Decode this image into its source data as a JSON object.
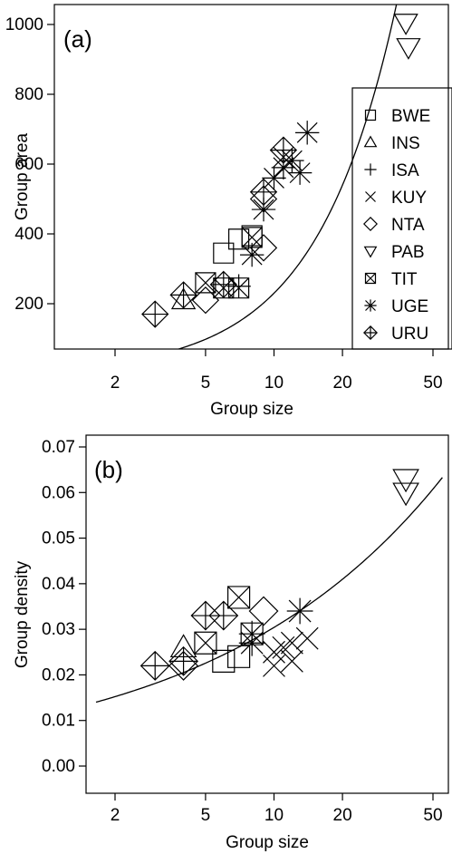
{
  "chart_data": [
    {
      "panel": "(a)",
      "type": "scatter",
      "xlabel": "Group size",
      "ylabel": "Group area",
      "x_scale": "log",
      "xlim": [
        1.65,
        55
      ],
      "ylim": [
        60,
        1030
      ],
      "xticks": [
        2,
        5,
        10,
        20,
        50
      ],
      "yticks": [
        200,
        400,
        600,
        800,
        1000
      ],
      "grid": false,
      "legend_position": "right",
      "series": [
        {
          "name": "BWE",
          "marker": "square",
          "points": [
            [
              6,
              345
            ],
            [
              7,
              385
            ],
            [
              8,
              395
            ]
          ]
        },
        {
          "name": "INS",
          "marker": "triangle-up",
          "points": [
            [
              4,
              210
            ]
          ]
        },
        {
          "name": "ISA",
          "marker": "plus",
          "points": [
            [
              7,
              250
            ]
          ]
        },
        {
          "name": "KUY",
          "marker": "cross",
          "points": [
            [
              11,
              620
            ]
          ]
        },
        {
          "name": "NTA",
          "marker": "diamond",
          "points": [
            [
              5,
              210
            ],
            [
              9,
              360
            ],
            [
              9,
              500
            ]
          ]
        },
        {
          "name": "PAB",
          "marker": "triangle-down",
          "points": [
            [
              38,
              1005
            ],
            [
              39,
              935
            ]
          ]
        },
        {
          "name": "TIT",
          "marker": "boxed-cross",
          "points": [
            [
              5,
              260
            ],
            [
              6,
              245
            ],
            [
              7,
              245
            ],
            [
              8,
              390
            ]
          ]
        },
        {
          "name": "UGE",
          "marker": "asterisk",
          "points": [
            [
              8,
              340
            ],
            [
              9,
              470
            ],
            [
              10,
              560
            ],
            [
              11,
              590
            ],
            [
              12,
              610
            ],
            [
              13,
              575
            ],
            [
              14,
              690
            ]
          ]
        },
        {
          "name": "URU",
          "marker": "diamond-plus",
          "points": [
            [
              3,
              170
            ],
            [
              4,
              225
            ],
            [
              6,
              255
            ],
            [
              9,
              520
            ],
            [
              11,
              640
            ]
          ]
        }
      ],
      "fit_curve": {
        "form": "a*x^b",
        "a": 13.55,
        "b": 1.23
      }
    },
    {
      "panel": "(b)",
      "type": "scatter",
      "xlabel": "Group size",
      "ylabel": "Group density",
      "x_scale": "log",
      "xlim": [
        1.65,
        55
      ],
      "ylim": [
        -0.003,
        0.072
      ],
      "xticks": [
        2,
        5,
        10,
        20,
        50
      ],
      "yticks": [
        0.0,
        0.01,
        0.02,
        0.03,
        0.04,
        0.05,
        0.06,
        0.07
      ],
      "grid": false,
      "series": [
        {
          "name": "BWE",
          "marker": "square",
          "points": [
            [
              6,
              0.023
            ],
            [
              7,
              0.024
            ]
          ]
        },
        {
          "name": "INS",
          "marker": "triangle-up",
          "points": [
            [
              4,
              0.026
            ]
          ]
        },
        {
          "name": "ISA",
          "marker": "plus",
          "points": [
            [
              8,
              0.029
            ]
          ]
        },
        {
          "name": "KUY",
          "marker": "cross",
          "points": [
            [
              10,
              0.022
            ],
            [
              10,
              0.025
            ],
            [
              11,
              0.026
            ],
            [
              12,
              0.023
            ],
            [
              12,
              0.027
            ],
            [
              14,
              0.028
            ]
          ]
        },
        {
          "name": "NTA",
          "marker": "diamond",
          "points": [
            [
              4,
              0.022
            ],
            [
              9,
              0.034
            ]
          ]
        },
        {
          "name": "PAB",
          "marker": "triangle-down",
          "points": [
            [
              38,
              0.063
            ],
            [
              38,
              0.06
            ]
          ]
        },
        {
          "name": "TIT",
          "marker": "boxed-cross",
          "points": [
            [
              5,
              0.027
            ],
            [
              7,
              0.037
            ],
            [
              8,
              0.029
            ]
          ]
        },
        {
          "name": "UGE",
          "marker": "asterisk",
          "points": [
            [
              8,
              0.027
            ],
            [
              13,
              0.034
            ]
          ]
        },
        {
          "name": "URU",
          "marker": "diamond-plus",
          "points": [
            [
              3,
              0.022
            ],
            [
              4,
              0.023
            ],
            [
              5,
              0.033
            ],
            [
              6,
              0.033
            ]
          ]
        }
      ],
      "fit_curve": {
        "form": "a*x^b",
        "a": 0.0113,
        "b": 0.43
      }
    }
  ]
}
